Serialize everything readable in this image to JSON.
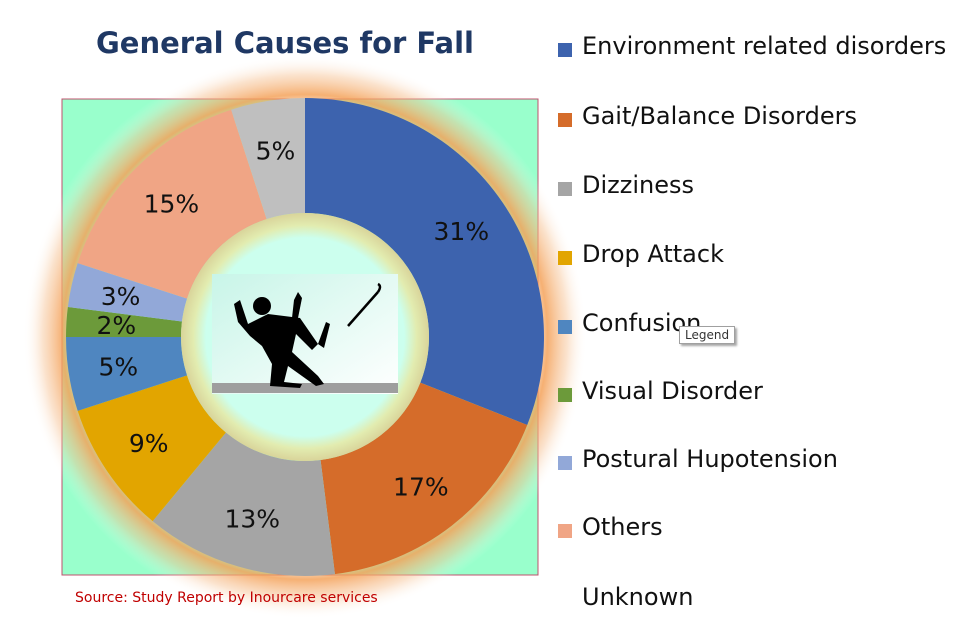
{
  "chart_data": {
    "type": "pie",
    "title": "General Causes for Fall",
    "categories": [
      "Environment related disorders",
      "Gait/Balance Disorders",
      "Dizziness",
      "Drop Attack",
      "Confusion",
      "Visual Disorder",
      "Postural Hupotension",
      "Others",
      "Unknown"
    ],
    "values": [
      31,
      17,
      13,
      9,
      5,
      2,
      3,
      15,
      5
    ],
    "data_labels": [
      "31%",
      "17%",
      "13%",
      "9%",
      "5%",
      "2%",
      "3%",
      "15%",
      "5%"
    ],
    "colors": [
      "#3d63ae",
      "#d56c2a",
      "#a5a5a5",
      "#e2a500",
      "#4f86c0",
      "#6c9a3a",
      "#92a8d8",
      "#f0a585",
      "#bfbfbf"
    ],
    "legend_colors": [
      "#3d63ae",
      "#d56c2a",
      "#a5a5a5",
      "#e2a500",
      "#4f86c0",
      "#6c9a3a",
      "#92a8d8",
      "#f0a585",
      "transparent"
    ],
    "donut": true,
    "legend_position": "right",
    "plot_background": "#99ffcc",
    "center_image": "falling-person-with-cane-icon",
    "tooltip": "Legend",
    "source": "Source: Study Report by Inourcare services"
  }
}
